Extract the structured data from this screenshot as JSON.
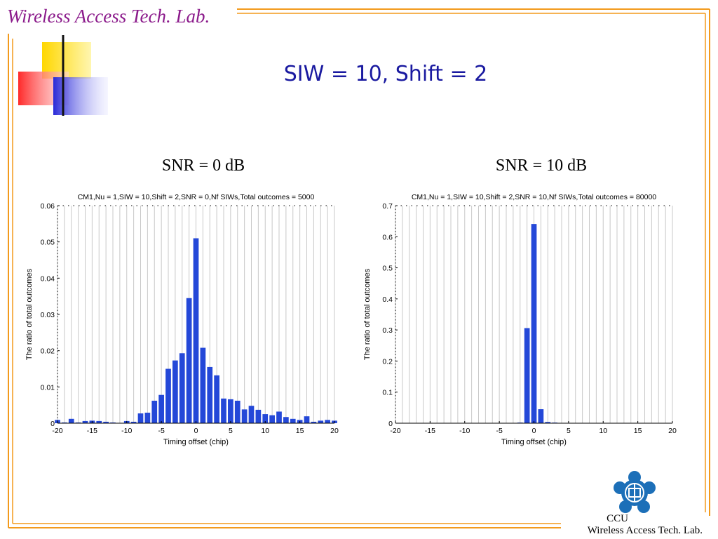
{
  "header": {
    "lab_name": "Wireless Access Tech. Lab."
  },
  "slide": {
    "title": "SIW = 10, Shift = 2"
  },
  "colors": {
    "frame_orange": "#f39a1c",
    "bar_blue": "#2448d8",
    "header_purple": "#8b1a8b",
    "title_blue": "#1a1aa0",
    "logo_blue": "#1c6fb8"
  },
  "footer": {
    "logo_label": "CCU",
    "lab_name": "Wireless Access Tech. Lab."
  },
  "logo": {
    "icon": "ccu-emblem-icon"
  },
  "chart_data": [
    {
      "heading": "SNR = 0 dB",
      "type": "bar",
      "title": "CM1,Nu = 1,SIW = 10,Shift = 2,SNR = 0,Nf SIWs,Total outcomes = 5000",
      "xlabel": "Timing offset (chip)",
      "ylabel": "The ratio of total outcomes",
      "xlim": [
        -20,
        20
      ],
      "ylim": [
        0,
        0.06
      ],
      "xticks": [
        -20,
        -15,
        -10,
        -5,
        0,
        5,
        10,
        15,
        20
      ],
      "yticks": [
        "0",
        "0.01",
        "0.02",
        "0.03",
        "0.04",
        "0.05",
        "0.06"
      ],
      "grid": "vertical",
      "x": [
        -20,
        -19,
        -18,
        -17,
        -16,
        -15,
        -14,
        -13,
        -12,
        -11,
        -10,
        -9,
        -8,
        -7,
        -6,
        -5,
        -4,
        -3,
        -2,
        -1,
        0,
        1,
        2,
        3,
        4,
        5,
        6,
        7,
        8,
        9,
        10,
        11,
        12,
        13,
        14,
        15,
        16,
        17,
        18,
        19,
        20
      ],
      "values": [
        0.0009,
        0.0002,
        0.0012,
        0.0002,
        0.0006,
        0.0007,
        0.0006,
        0.0004,
        0.0002,
        0.0001,
        0.0006,
        0.0004,
        0.0027,
        0.0029,
        0.0062,
        0.0078,
        0.015,
        0.0173,
        0.0193,
        0.0345,
        0.051,
        0.0208,
        0.0155,
        0.0132,
        0.0068,
        0.0066,
        0.0062,
        0.0038,
        0.0048,
        0.0037,
        0.0025,
        0.0022,
        0.0032,
        0.0017,
        0.0012,
        0.0009,
        0.0019,
        0.0004,
        0.0007,
        0.0009,
        0.0007
      ]
    },
    {
      "heading": "SNR = 10 dB",
      "type": "bar",
      "title": "CM1,Nu = 1,SIW = 10,Shift = 2,SNR = 10,Nf SIWs,Total outcomes = 80000",
      "xlabel": "Timing offset (chip)",
      "ylabel": "The ratio of total outcomes",
      "xlim": [
        -20,
        20
      ],
      "ylim": [
        0,
        0.7
      ],
      "xticks": [
        -20,
        -15,
        -10,
        -5,
        0,
        5,
        10,
        15,
        20
      ],
      "yticks": [
        "0",
        "0.1",
        "0.2",
        "0.3",
        "0.4",
        "0.5",
        "0.6",
        "0.7"
      ],
      "grid": "vertical",
      "x": [
        -20,
        -19,
        -18,
        -17,
        -16,
        -15,
        -14,
        -13,
        -12,
        -11,
        -10,
        -9,
        -8,
        -7,
        -6,
        -5,
        -4,
        -3,
        -2,
        -1,
        0,
        1,
        2,
        3,
        4,
        5,
        6,
        7,
        8,
        9,
        10,
        11,
        12,
        13,
        14,
        15,
        16,
        17,
        18,
        19,
        20
      ],
      "values": [
        0,
        0,
        0,
        0,
        0,
        0,
        0,
        0,
        0,
        0,
        0,
        0,
        0,
        0,
        0,
        0,
        0.001,
        0.001,
        0.002,
        0.306,
        0.641,
        0.045,
        0.004,
        0.002,
        0.001,
        0.001,
        0.001,
        0,
        0,
        0,
        0,
        0,
        0,
        0,
        0,
        0,
        0,
        0,
        0,
        0,
        0
      ]
    }
  ]
}
